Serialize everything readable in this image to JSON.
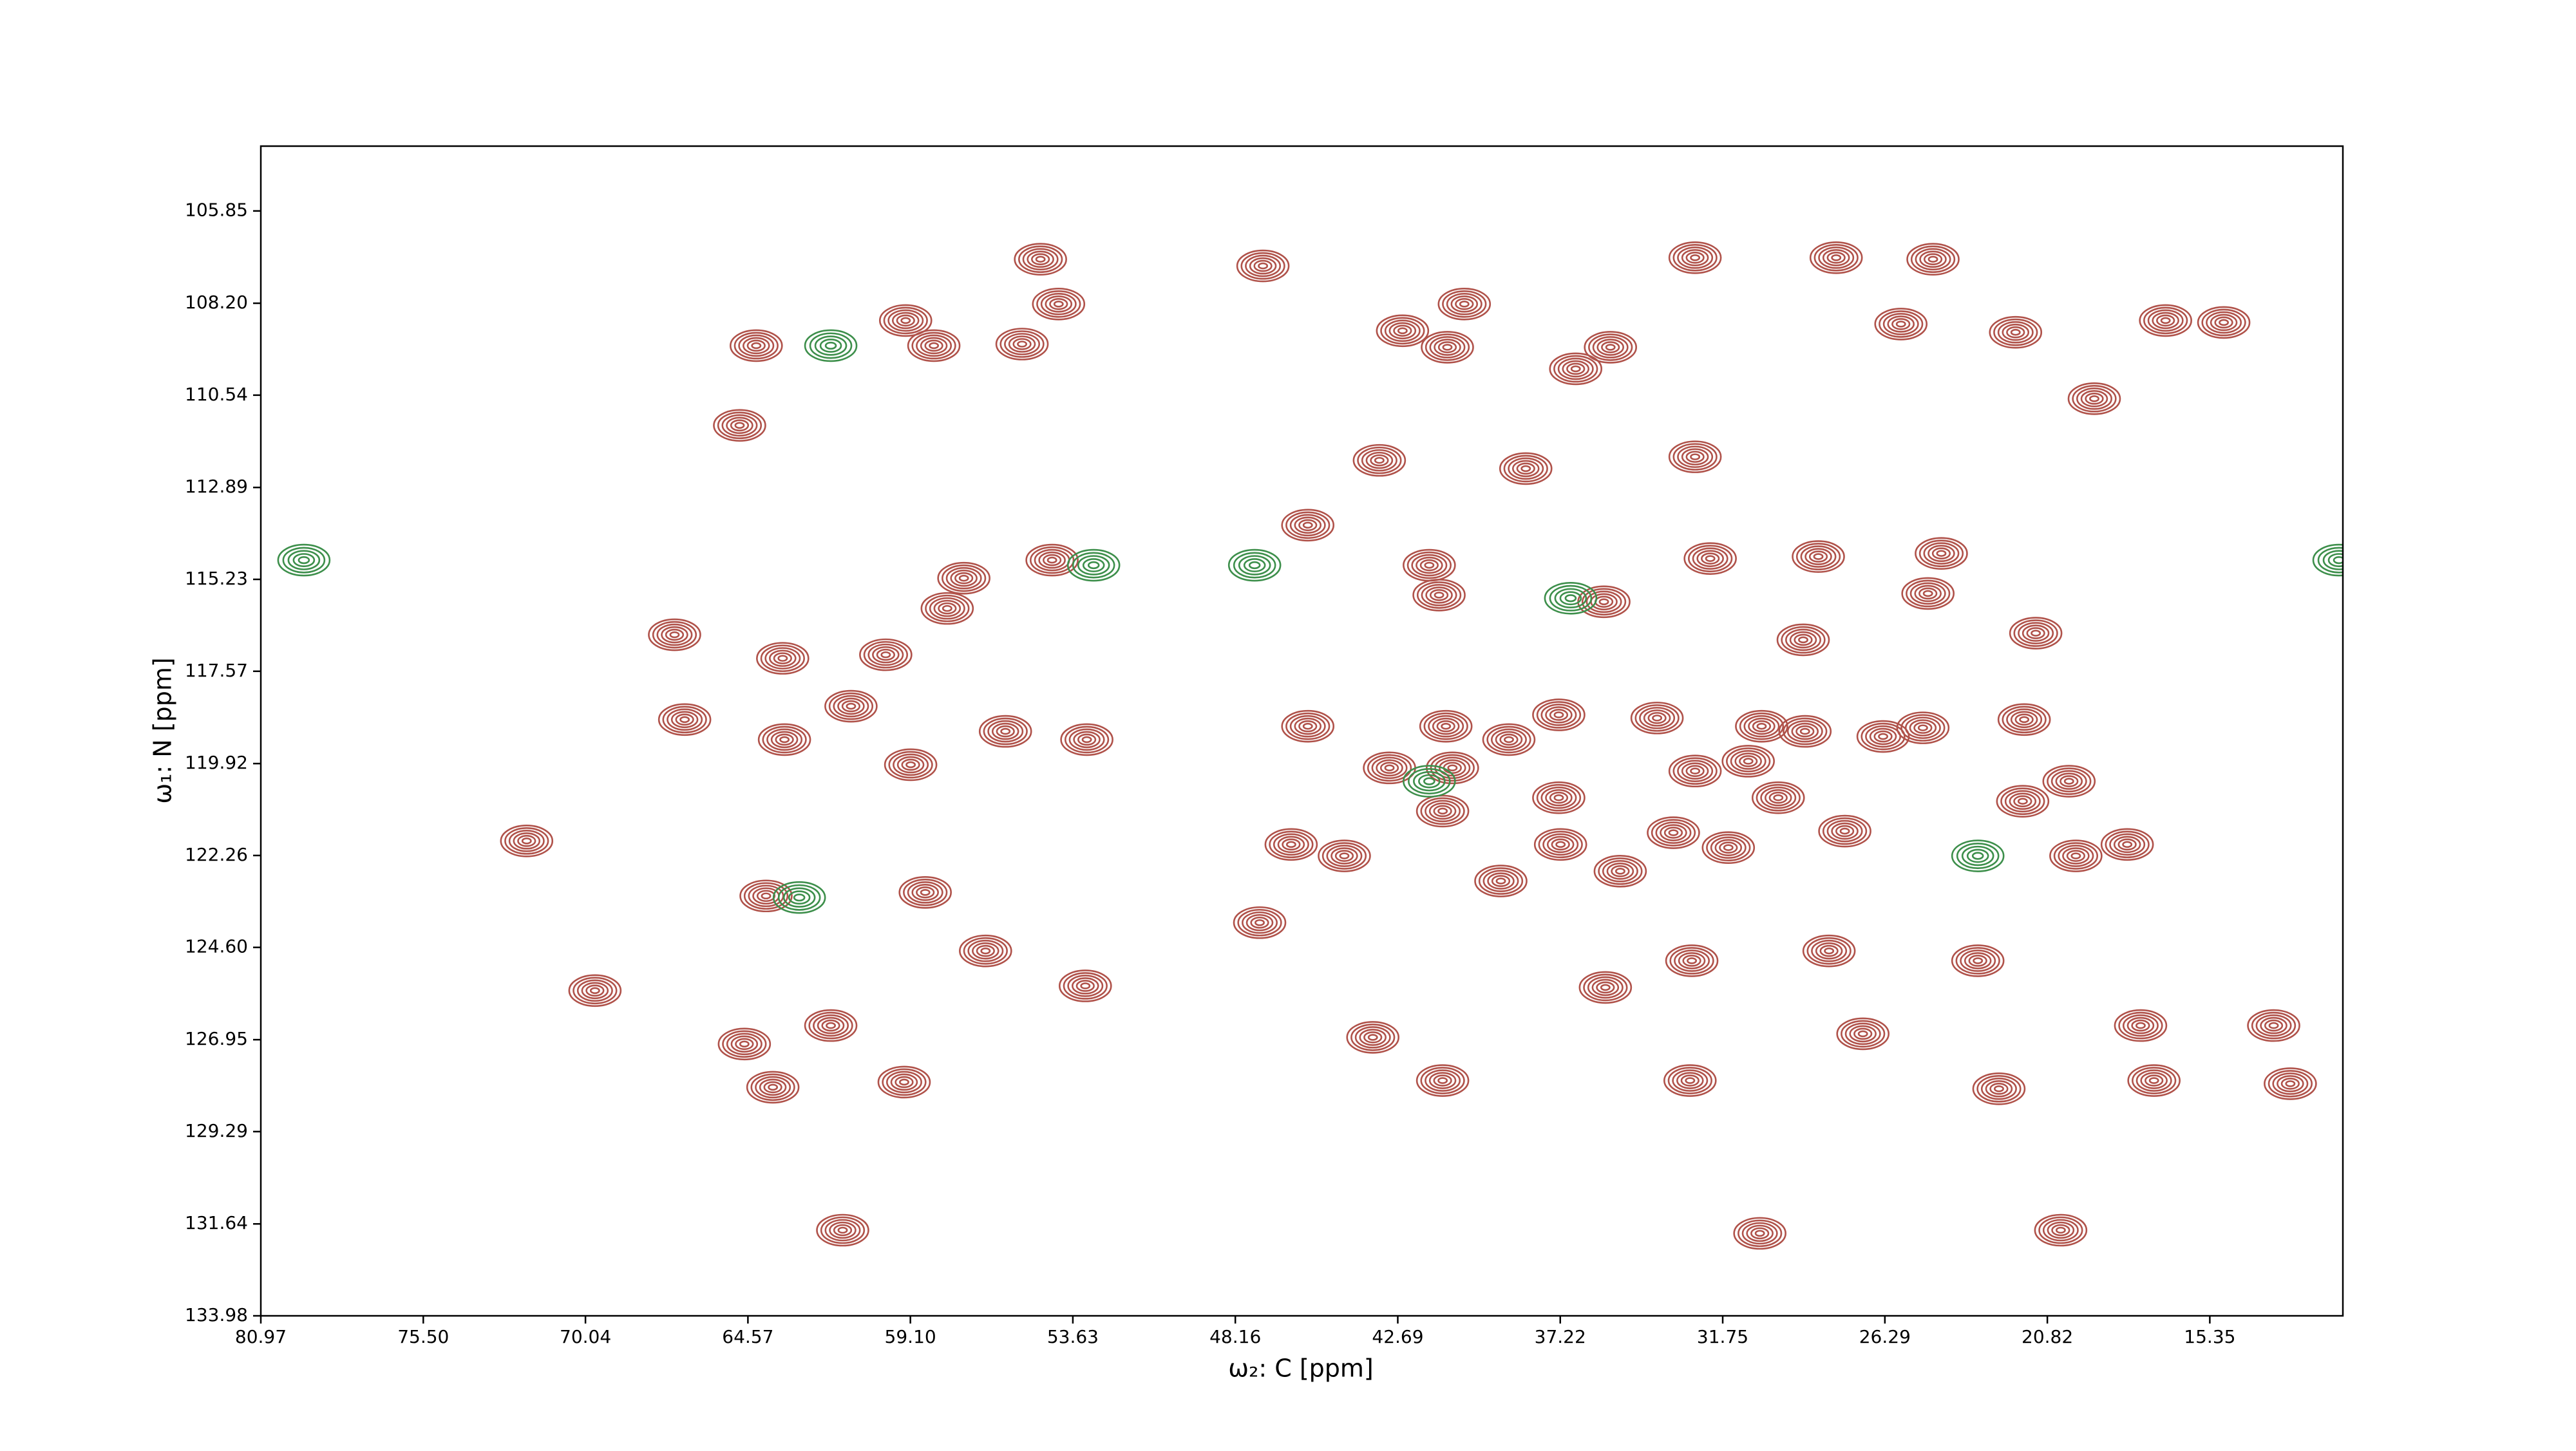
{
  "chart_data": {
    "type": "contour",
    "xlabel": "ω₂: C [ppm]",
    "ylabel": "ω₁: N [ppm]",
    "xlim": [
      80.97,
      10.87
    ],
    "ylim": [
      133.98,
      104.2
    ],
    "xticks": [
      80.97,
      {
        "value": 75.5,
        "label": "75.50"
      },
      70.04,
      64.57,
      {
        "value": 59.1,
        "label": "59.10"
      },
      53.63,
      48.16,
      42.69,
      37.22,
      31.75,
      26.29,
      20.82,
      15.35
    ],
    "yticks": [
      105.85,
      {
        "value": 108.2,
        "label": "108.20"
      },
      110.54,
      112.89,
      115.23,
      117.57,
      119.92,
      122.26,
      {
        "value": 124.6,
        "label": "124.60"
      },
      126.95,
      129.29,
      131.64,
      133.98
    ],
    "series": [
      {
        "color": "#b0524a",
        "x": [
          54.72,
          47.23,
          64.29,
          55.34,
          35.53,
          40.45,
          32.68,
          27.93,
          24.67,
          43.31,
          38.38,
          45.72,
          54.33,
          41.63,
          35.75,
          67.04,
          32.17,
          29.04,
          21.21,
          59.93,
          63.4,
          66.7,
          61.1,
          45.72,
          41.07,
          21.6,
          37.27,
          72.02,
          63.96,
          58.6,
          47.34,
          46.28,
          44.49,
          37.21,
          33.41,
          31.56,
          19.86,
          21.65,
          20.09,
          18.13,
          69.72,
          64.69,
          63.73,
          59.31,
          61.78,
          35.7,
          41.18,
          17.23,
          12.64,
          13.2,
          20.37,
          30.5,
          61.38,
          43.53,
          56.57,
          53.21,
          28.17,
          32.79,
          22.45,
          32.85,
          27.03,
          17.68,
          41.3,
          24.39,
          28.53,
          24.84,
          32.68,
          21.89,
          16.84,
          14.88,
          25.75,
          19.24,
          64.85,
          59.26,
          58.31,
          54.11,
          41.02,
          42.53,
          36.7,
          42.97,
          40.85,
          38.95,
          32.68,
          29.88,
          27.64,
          26.35,
          25.01,
          33.96,
          39.22,
          57.3,
          57.86,
          63.34,
          59.09,
          55.9,
          53.16,
          30.44,
          28.98,
          37.27,
          41.18,
          30.89,
          35.2,
          23.16
        ],
        "y": [
          107.08,
          107.25,
          109.28,
          109.24,
          109.32,
          108.22,
          107.04,
          107.04,
          107.08,
          112.2,
          112.41,
          113.85,
          114.74,
          114.87,
          115.8,
          116.64,
          114.7,
          116.77,
          116.6,
          117.15,
          117.24,
          118.8,
          118.46,
          118.97,
          118.97,
          118.8,
          118.68,
          121.89,
          123.29,
          123.2,
          123.97,
          121.98,
          122.27,
          121.98,
          121.68,
          122.06,
          122.27,
          120.88,
          120.37,
          121.98,
          125.7,
          127.06,
          128.16,
          128.03,
          126.59,
          125.62,
          127.99,
          127.99,
          128.07,
          126.59,
          131.8,
          131.88,
          131.8,
          126.89,
          124.69,
          125.58,
          124.69,
          124.94,
          128.2,
          127.99,
          126.8,
          126.59,
          115.63,
          114.57,
          114.65,
          115.59,
          112.11,
          108.94,
          108.64,
          108.69,
          108.73,
          110.63,
          111.31,
          108.64,
          109.28,
          108.22,
          109.32,
          108.9,
          109.87,
          120.03,
          120.03,
          119.31,
          120.11,
          120.79,
          121.64,
          119.23,
          119.01,
          118.76,
          122.91,
          115.2,
          115.97,
          119.31,
          119.95,
          119.1,
          119.31,
          118.97,
          119.1,
          120.79,
          121.13,
          119.86,
          122.66,
          124.94
        ]
      },
      {
        "color": "#3d8f4b",
        "x": [
          79.52,
          52.93,
          62.84,
          41.63,
          11.0,
          47.51,
          36.87,
          23.16,
          61.78
        ],
        "y": [
          114.74,
          114.87,
          123.33,
          120.37,
          114.74,
          114.87,
          115.71,
          122.27,
          109.28
        ]
      }
    ]
  }
}
